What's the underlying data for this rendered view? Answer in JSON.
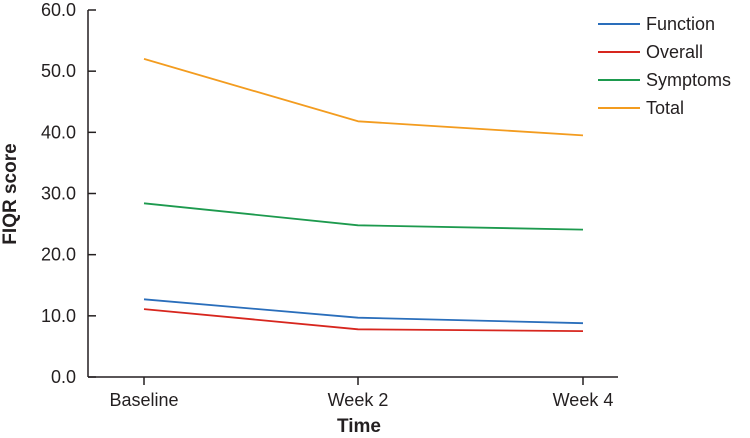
{
  "chart_data": {
    "type": "line",
    "categories": [
      "Baseline",
      "Week 2",
      "Week 4"
    ],
    "xlabel": "Time",
    "ylabel": "FIQR score",
    "ylim": [
      0,
      60
    ],
    "yticks": [
      "0.0",
      "10.0",
      "20.0",
      "30.0",
      "40.0",
      "50.0",
      "60.0"
    ],
    "grid": false,
    "legend_position": "top-right",
    "series": [
      {
        "name": "Function",
        "color": "#2a6ebb",
        "values": [
          12.7,
          9.7,
          8.8
        ]
      },
      {
        "name": "Overall",
        "color": "#d7261e",
        "values": [
          11.1,
          7.8,
          7.5
        ]
      },
      {
        "name": "Symptoms",
        "color": "#1d9a4e",
        "values": [
          28.4,
          24.8,
          24.1
        ]
      },
      {
        "name": "Total",
        "color": "#f39c1f",
        "values": [
          52.0,
          41.8,
          39.5
        ]
      }
    ]
  }
}
